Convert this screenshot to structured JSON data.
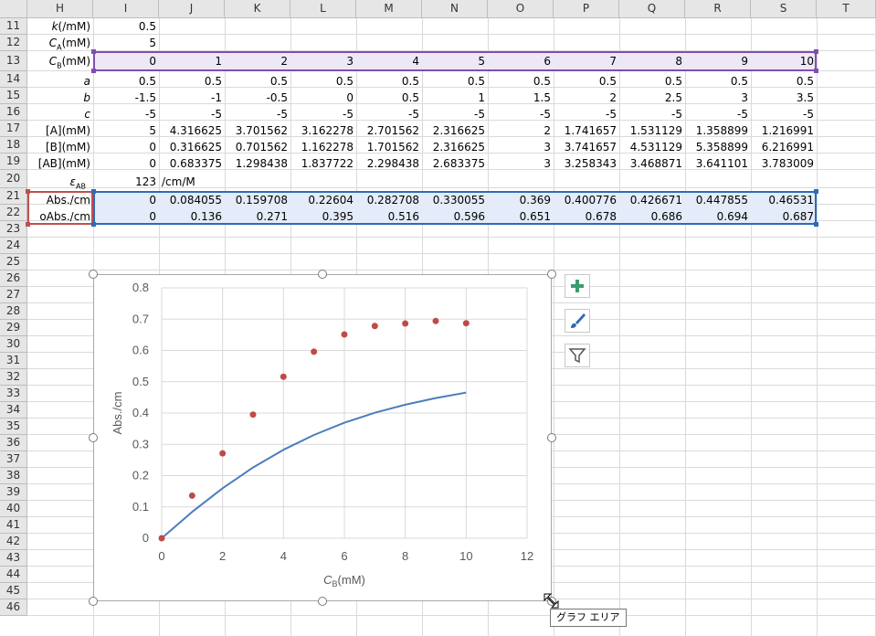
{
  "columns": [
    "H",
    "I",
    "J",
    "K",
    "L",
    "M",
    "N",
    "O",
    "P",
    "Q",
    "R",
    "S",
    "T"
  ],
  "rows": [
    "11",
    "12",
    "13",
    "14",
    "15",
    "16",
    "17",
    "18",
    "19",
    "20",
    "21",
    "22",
    "23",
    "24",
    "25",
    "26",
    "27",
    "28",
    "29",
    "30",
    "31",
    "32",
    "33",
    "34",
    "35",
    "36",
    "37",
    "38",
    "39",
    "40",
    "41",
    "42",
    "43",
    "44",
    "45",
    "46"
  ],
  "labels": {
    "r11": "k(/mM)",
    "r12": "CA(mM)",
    "r13": "CB(mM)",
    "r14": "a",
    "r15": "b",
    "r16": "c",
    "r17": "[A](mM)",
    "r18": "[B](mM)",
    "r19": "[AB](mM)",
    "r20": "εAB",
    "r21": "Abs./cm",
    "r22": "oAbs./cm"
  },
  "labels_parts": {
    "ca_main": "C",
    "ca_sub": "A",
    "ca_tail": "(mM)",
    "cb_main": "C",
    "cb_sub": "B",
    "cb_tail": "(mM)",
    "eps_main": "ε",
    "eps_sub": "AB"
  },
  "values": {
    "k": "0.5",
    "ca": "5",
    "epsilon": "123",
    "epsilon_unit": "/cm/M"
  },
  "table": {
    "cb": [
      "0",
      "1",
      "2",
      "3",
      "4",
      "5",
      "6",
      "7",
      "8",
      "9",
      "10"
    ],
    "a": [
      "0.5",
      "0.5",
      "0.5",
      "0.5",
      "0.5",
      "0.5",
      "0.5",
      "0.5",
      "0.5",
      "0.5",
      "0.5"
    ],
    "b": [
      "-1.5",
      "-1",
      "-0.5",
      "0",
      "0.5",
      "1",
      "1.5",
      "2",
      "2.5",
      "3",
      "3.5"
    ],
    "c": [
      "-5",
      "-5",
      "-5",
      "-5",
      "-5",
      "-5",
      "-5",
      "-5",
      "-5",
      "-5",
      "-5"
    ],
    "A": [
      "5",
      "4.316625",
      "3.701562",
      "3.162278",
      "2.701562",
      "2.316625",
      "2",
      "1.741657",
      "1.531129",
      "1.358899",
      "1.216991"
    ],
    "B": [
      "0",
      "0.316625",
      "0.701562",
      "1.162278",
      "1.701562",
      "2.316625",
      "3",
      "3.741657",
      "4.531129",
      "5.358899",
      "6.216991"
    ],
    "AB": [
      "0",
      "0.683375",
      "1.298438",
      "1.837722",
      "2.298438",
      "2.683375",
      "3",
      "3.258343",
      "3.468871",
      "3.641101",
      "3.783009"
    ],
    "abs": [
      "0",
      "0.084055",
      "0.159708",
      "0.22604",
      "0.282708",
      "0.330055",
      "0.369",
      "0.400776",
      "0.426671",
      "0.447855",
      "0.46531"
    ],
    "oabs": [
      "0",
      "0.136",
      "0.271",
      "0.395",
      "0.516",
      "0.596",
      "0.651",
      "0.678",
      "0.686",
      "0.694",
      "0.687"
    ]
  },
  "chart_data": {
    "type": "scatter",
    "title": "",
    "xlabel_main": "C",
    "xlabel_sub": "B",
    "xlabel_tail": "(mM)",
    "ylabel": "Abs./cm",
    "xlim": [
      0,
      12
    ],
    "ylim": [
      0,
      0.8
    ],
    "xticks": [
      "0",
      "2",
      "4",
      "6",
      "8",
      "10",
      "12"
    ],
    "yticks": [
      "0",
      "0.1",
      "0.2",
      "0.3",
      "0.4",
      "0.5",
      "0.6",
      "0.7",
      "0.8"
    ],
    "grid": true,
    "series": [
      {
        "kind": "line",
        "color": "#4a7ebb",
        "x": [
          0,
          1,
          2,
          3,
          4,
          5,
          6,
          7,
          8,
          9,
          10
        ],
        "y": [
          0,
          0.084055,
          0.159708,
          0.22604,
          0.282708,
          0.330055,
          0.369,
          0.400776,
          0.426671,
          0.447855,
          0.46531
        ]
      },
      {
        "kind": "points",
        "color": "#be4b48",
        "x": [
          0,
          1,
          2,
          3,
          4,
          5,
          6,
          7,
          8,
          9,
          10
        ],
        "y": [
          0,
          0.136,
          0.271,
          0.395,
          0.516,
          0.596,
          0.651,
          0.678,
          0.686,
          0.694,
          0.687
        ]
      }
    ]
  },
  "chart_tools": [
    "add-chart-element-icon",
    "chart-styles-icon",
    "chart-filters-icon"
  ],
  "tooltip": "グラフ エリア",
  "colors": {
    "selection_purple": "#7f4fb0",
    "selection_blue": "#2f6ab7",
    "selection_red": "#c0504d",
    "highlight_purple": "#eee8f6",
    "highlight_blue": "#e3ecf8"
  }
}
